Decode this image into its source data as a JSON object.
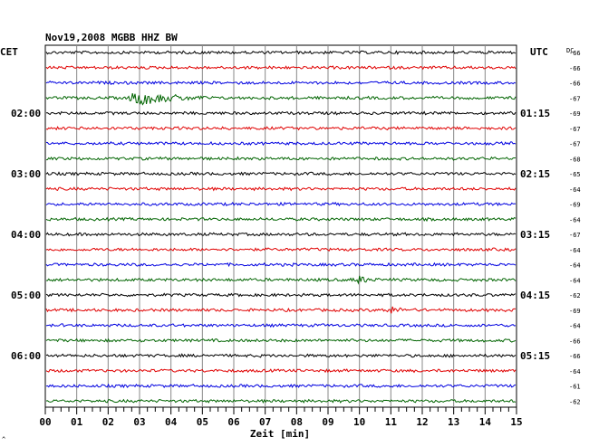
{
  "header": {
    "title": "Nov19,2008  MGBB HHZ BW",
    "left_label": "CET",
    "right_label": "UTC",
    "dc_label": "DC",
    "corner_mark": "^"
  },
  "chart_data": {
    "type": "line",
    "title": "Nov19,2008  MGBB HHZ BW",
    "xlabel": "Zeit [min]",
    "xlim": [
      0,
      15
    ],
    "x_ticks": [
      "00",
      "01",
      "02",
      "03",
      "04",
      "05",
      "06",
      "07",
      "08",
      "09",
      "10",
      "11",
      "12",
      "13",
      "14",
      "15"
    ],
    "trace_colors": [
      "#000000",
      "#e00000",
      "#0000e0",
      "#006400"
    ],
    "left_time_labels": [
      {
        "row": 4,
        "text": "02:00"
      },
      {
        "row": 8,
        "text": "03:00"
      },
      {
        "row": 12,
        "text": "04:00"
      },
      {
        "row": 16,
        "text": "05:00"
      },
      {
        "row": 20,
        "text": "06:00"
      }
    ],
    "right_time_labels": [
      {
        "row": 4,
        "text": "01:15"
      },
      {
        "row": 8,
        "text": "02:15"
      },
      {
        "row": 12,
        "text": "03:15"
      },
      {
        "row": 16,
        "text": "04:15"
      },
      {
        "row": 20,
        "text": "05:15"
      }
    ],
    "dc_offsets": [
      "-66",
      "-66",
      "-66",
      "-67",
      "-69",
      "-67",
      "-67",
      "-68",
      "-65",
      "-64",
      "-69",
      "-64",
      "-67",
      "-64",
      "-64",
      "-64",
      "-62",
      "-69",
      "-64",
      "-66",
      "-66",
      "-64",
      "-61",
      "-62"
    ],
    "events": [
      {
        "row": 3,
        "minute": 2.9,
        "amplitude": "large"
      },
      {
        "row": 17,
        "minute": 11.0,
        "amplitude": "small"
      },
      {
        "row": 15,
        "minute": 10.0,
        "amplitude": "small"
      }
    ],
    "grid": true
  }
}
